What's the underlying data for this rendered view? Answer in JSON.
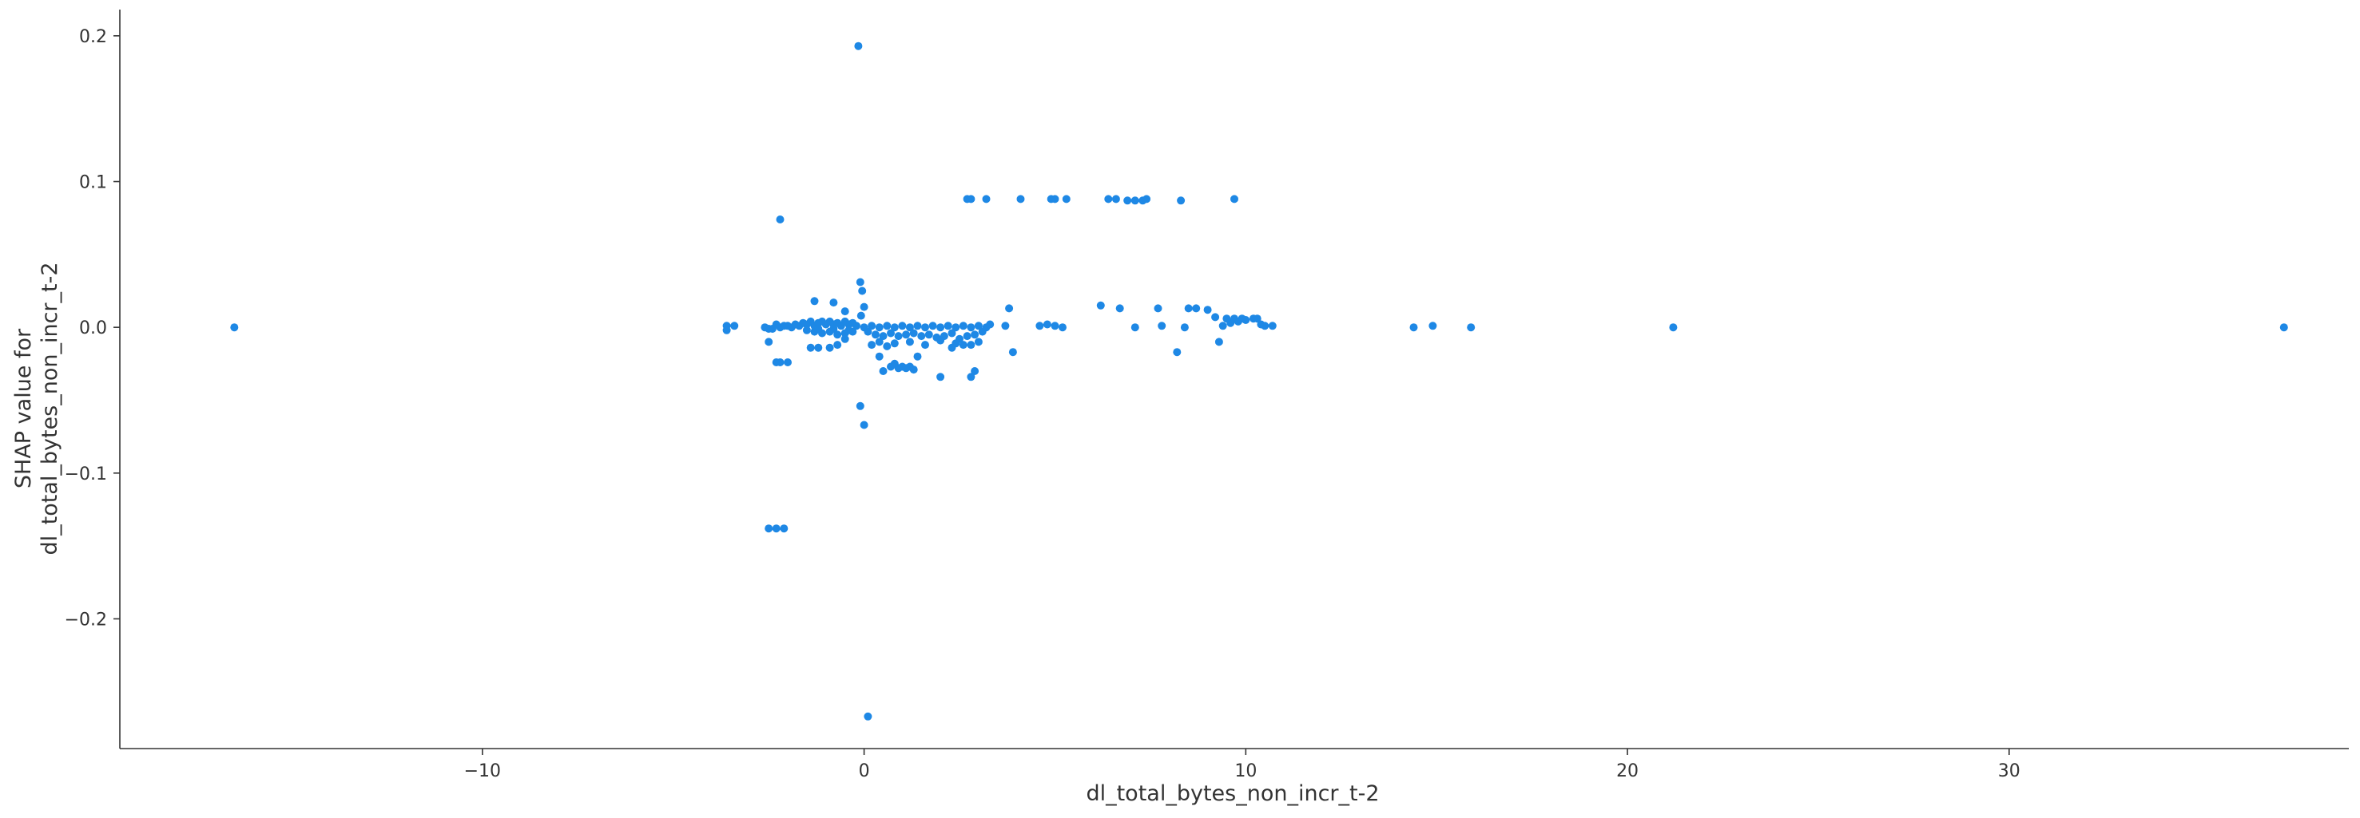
{
  "chart_data": {
    "type": "scatter",
    "xlabel": "dl_total_bytes_non_incr_t-2",
    "ylabel_lines": [
      "SHAP value for",
      "dl_total_bytes_non_incr_t-2"
    ],
    "xlim": [
      -19.5,
      38.9
    ],
    "ylim": [
      -0.289,
      0.218
    ],
    "x_ticks": [
      -10,
      0,
      10,
      20,
      30
    ],
    "x_tick_labels": [
      "−10",
      "0",
      "10",
      "20",
      "30"
    ],
    "y_ticks": [
      -0.2,
      -0.1,
      0.0,
      0.1,
      0.2
    ],
    "y_tick_labels": [
      "−0.2",
      "−0.1",
      "0.0",
      "0.1",
      "0.2"
    ],
    "grid": false,
    "point_color": "#1E88E5",
    "points": [
      [
        -16.5,
        0.0
      ],
      [
        -3.6,
        0.001
      ],
      [
        -3.6,
        -0.002
      ],
      [
        -3.4,
        0.001
      ],
      [
        -2.6,
        0.0
      ],
      [
        -2.5,
        -0.001
      ],
      [
        -2.5,
        -0.01
      ],
      [
        -2.4,
        -0.001
      ],
      [
        -2.3,
        0.002
      ],
      [
        -2.2,
        0.0
      ],
      [
        -2.1,
        0.001
      ],
      [
        -2.0,
        0.001
      ],
      [
        -1.9,
        0.0
      ],
      [
        -1.8,
        0.002
      ],
      [
        -1.7,
        0.001
      ],
      [
        -1.6,
        0.003
      ],
      [
        -1.5,
        0.002
      ],
      [
        -1.4,
        0.004
      ],
      [
        -1.3,
        0.001
      ],
      [
        -1.2,
        0.003
      ],
      [
        -1.1,
        0.004
      ],
      [
        -1.0,
        0.002
      ],
      [
        -0.9,
        0.004
      ],
      [
        -0.8,
        0.002
      ],
      [
        -0.7,
        0.003
      ],
      [
        -0.6,
        0.001
      ],
      [
        -0.5,
        0.004
      ],
      [
        -0.4,
        0.002
      ],
      [
        -0.3,
        0.003
      ],
      [
        -0.2,
        0.001
      ],
      [
        -1.5,
        -0.002
      ],
      [
        -1.3,
        -0.003
      ],
      [
        -1.1,
        -0.004
      ],
      [
        -0.9,
        -0.003
      ],
      [
        -0.7,
        -0.005
      ],
      [
        -0.5,
        -0.004
      ],
      [
        -0.3,
        -0.003
      ],
      [
        -1.2,
        -0.001
      ],
      [
        -0.8,
        -0.001
      ],
      [
        -0.4,
        -0.002
      ],
      [
        -2.3,
        -0.024
      ],
      [
        -2.2,
        -0.024
      ],
      [
        -2.0,
        -0.024
      ],
      [
        -1.4,
        -0.014
      ],
      [
        -1.2,
        -0.014
      ],
      [
        -0.9,
        -0.014
      ],
      [
        -0.7,
        -0.012
      ],
      [
        -0.5,
        -0.008
      ],
      [
        -1.3,
        0.018
      ],
      [
        -0.8,
        0.017
      ],
      [
        -0.5,
        0.011
      ],
      [
        -2.2,
        0.074
      ],
      [
        -2.5,
        -0.138
      ],
      [
        -2.3,
        -0.138
      ],
      [
        -2.1,
        -0.138
      ],
      [
        -0.15,
        0.193
      ],
      [
        -0.1,
        0.031
      ],
      [
        -0.05,
        0.025
      ],
      [
        0.0,
        0.014
      ],
      [
        -0.08,
        0.008
      ],
      [
        -0.1,
        -0.054
      ],
      [
        0.0,
        -0.067
      ],
      [
        0.1,
        -0.267
      ],
      [
        0.0,
        0.0
      ],
      [
        0.2,
        0.001
      ],
      [
        0.4,
        0.0
      ],
      [
        0.6,
        0.001
      ],
      [
        0.8,
        0.0
      ],
      [
        1.0,
        0.001
      ],
      [
        1.2,
        0.0
      ],
      [
        1.4,
        0.001
      ],
      [
        1.6,
        0.0
      ],
      [
        1.8,
        0.001
      ],
      [
        2.0,
        0.0
      ],
      [
        2.2,
        0.001
      ],
      [
        2.4,
        0.0
      ],
      [
        2.6,
        0.001
      ],
      [
        2.8,
        0.0
      ],
      [
        3.0,
        0.001
      ],
      [
        3.2,
        0.0
      ],
      [
        3.3,
        0.002
      ],
      [
        0.1,
        -0.003
      ],
      [
        0.3,
        -0.005
      ],
      [
        0.5,
        -0.006
      ],
      [
        0.7,
        -0.004
      ],
      [
        0.9,
        -0.006
      ],
      [
        1.1,
        -0.005
      ],
      [
        1.3,
        -0.004
      ],
      [
        1.5,
        -0.006
      ],
      [
        1.7,
        -0.005
      ],
      [
        1.9,
        -0.007
      ],
      [
        2.1,
        -0.006
      ],
      [
        2.3,
        -0.004
      ],
      [
        2.5,
        -0.008
      ],
      [
        2.7,
        -0.006
      ],
      [
        2.9,
        -0.005
      ],
      [
        3.1,
        -0.003
      ],
      [
        0.2,
        -0.012
      ],
      [
        0.4,
        -0.01
      ],
      [
        0.6,
        -0.013
      ],
      [
        0.8,
        -0.011
      ],
      [
        1.2,
        -0.01
      ],
      [
        1.6,
        -0.012
      ],
      [
        2.0,
        -0.009
      ],
      [
        2.4,
        -0.011
      ],
      [
        2.8,
        -0.012
      ],
      [
        3.0,
        -0.01
      ],
      [
        0.4,
        -0.02
      ],
      [
        0.5,
        -0.03
      ],
      [
        0.7,
        -0.027
      ],
      [
        0.8,
        -0.025
      ],
      [
        0.9,
        -0.028
      ],
      [
        1.0,
        -0.027
      ],
      [
        1.1,
        -0.028
      ],
      [
        1.2,
        -0.027
      ],
      [
        1.3,
        -0.029
      ],
      [
        1.4,
        -0.02
      ],
      [
        2.0,
        -0.034
      ],
      [
        2.8,
        -0.034
      ],
      [
        2.9,
        -0.03
      ],
      [
        2.3,
        -0.014
      ],
      [
        2.6,
        -0.012
      ],
      [
        2.7,
        0.088
      ],
      [
        2.8,
        0.088
      ],
      [
        3.2,
        0.088
      ],
      [
        4.1,
        0.088
      ],
      [
        4.9,
        0.088
      ],
      [
        5.0,
        0.088
      ],
      [
        5.3,
        0.088
      ],
      [
        6.4,
        0.088
      ],
      [
        6.6,
        0.088
      ],
      [
        6.9,
        0.087
      ],
      [
        7.1,
        0.087
      ],
      [
        7.3,
        0.087
      ],
      [
        7.4,
        0.088
      ],
      [
        8.3,
        0.087
      ],
      [
        9.7,
        0.088
      ],
      [
        3.8,
        0.013
      ],
      [
        3.7,
        0.001
      ],
      [
        3.9,
        -0.017
      ],
      [
        4.6,
        0.001
      ],
      [
        4.8,
        0.002
      ],
      [
        5.0,
        0.001
      ],
      [
        5.2,
        0.0
      ],
      [
        6.2,
        0.015
      ],
      [
        6.7,
        0.013
      ],
      [
        7.1,
        0.0
      ],
      [
        7.7,
        0.013
      ],
      [
        7.8,
        0.001
      ],
      [
        8.2,
        -0.017
      ],
      [
        8.4,
        0.0
      ],
      [
        8.5,
        0.013
      ],
      [
        8.7,
        0.013
      ],
      [
        9.0,
        0.012
      ],
      [
        9.2,
        0.007
      ],
      [
        9.3,
        -0.01
      ],
      [
        9.4,
        0.001
      ],
      [
        9.5,
        0.006
      ],
      [
        9.6,
        0.003
      ],
      [
        9.7,
        0.006
      ],
      [
        9.8,
        0.004
      ],
      [
        9.9,
        0.006
      ],
      [
        10.0,
        0.005
      ],
      [
        10.2,
        0.006
      ],
      [
        10.3,
        0.006
      ],
      [
        10.4,
        0.002
      ],
      [
        10.5,
        0.001
      ],
      [
        10.7,
        0.001
      ],
      [
        14.4,
        0.0
      ],
      [
        14.9,
        0.001
      ],
      [
        15.9,
        0.0
      ],
      [
        21.2,
        0.0
      ],
      [
        37.2,
        0.0
      ]
    ]
  }
}
